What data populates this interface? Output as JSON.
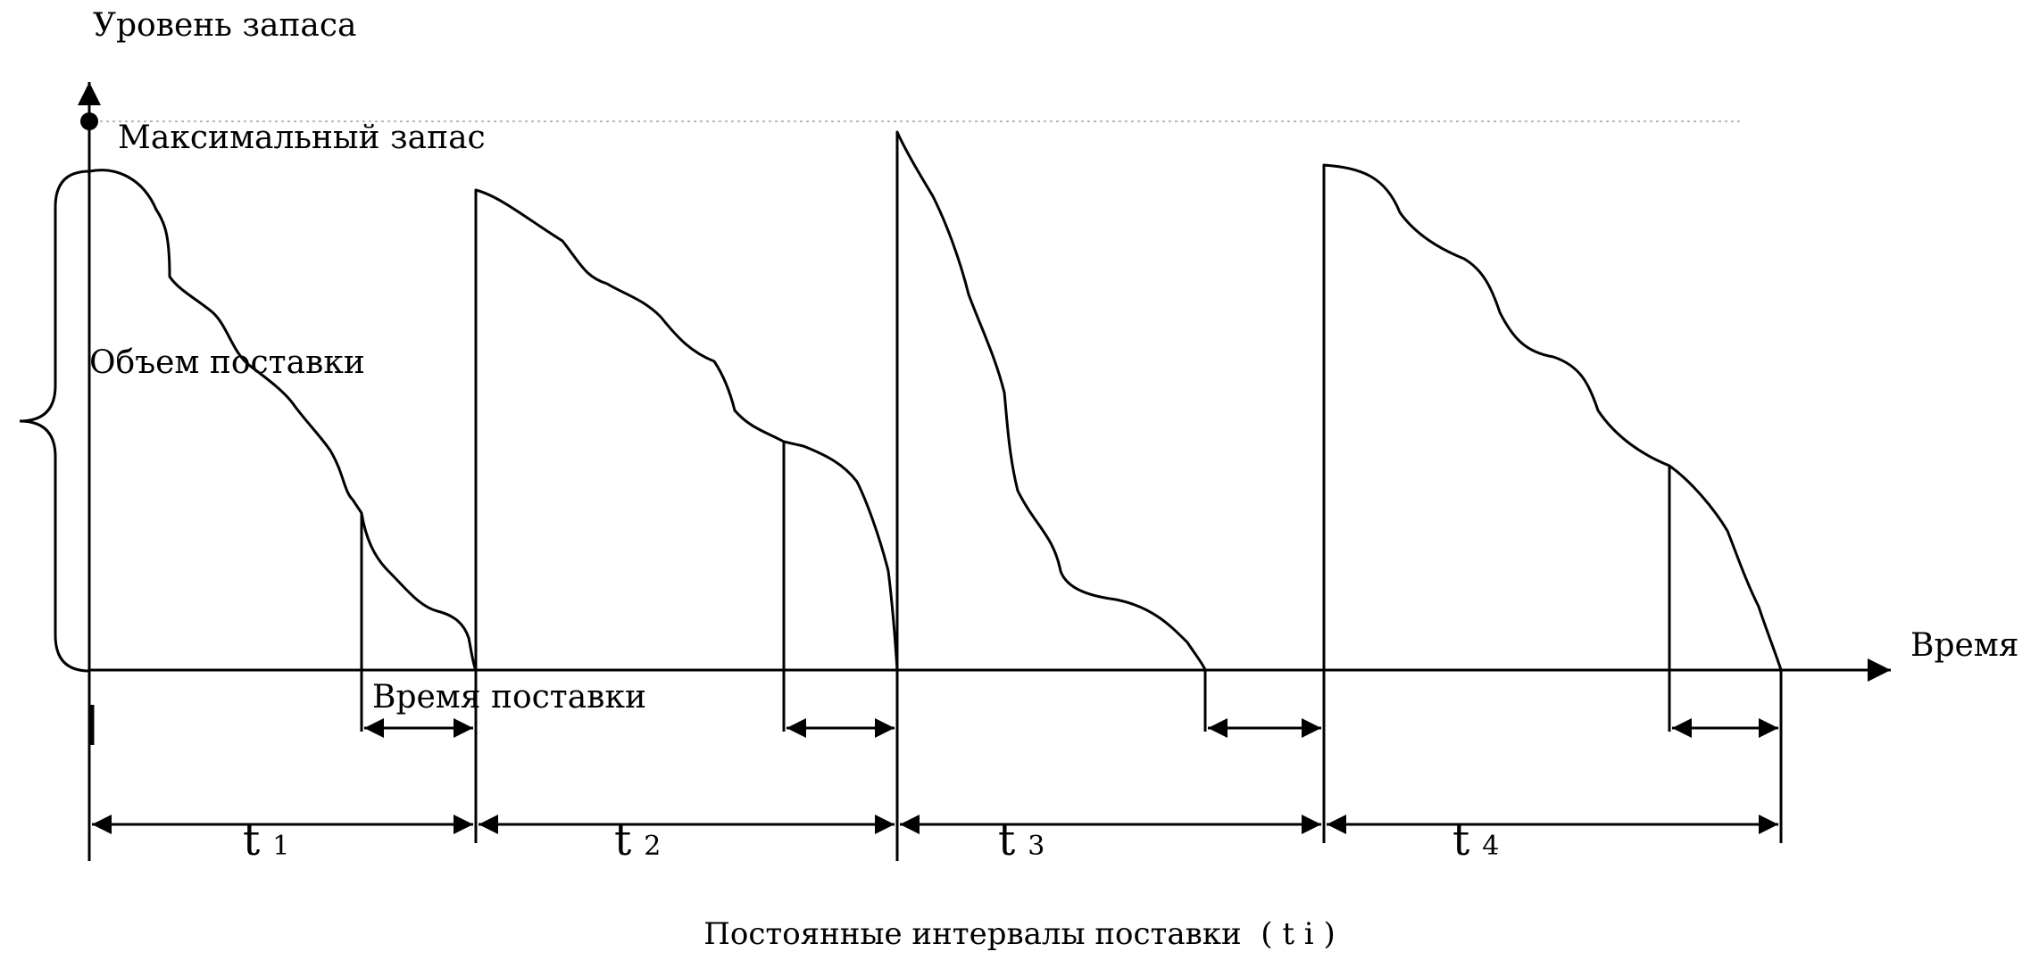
{
  "axis": {
    "y_label": "Уровень запаса",
    "x_label": "Время"
  },
  "labels": {
    "max_stock": "Максимальный запас",
    "order_volume": "Объем поставки",
    "lead_time": "Время поставки"
  },
  "intervals": [
    {
      "symbol": "t",
      "index": "1"
    },
    {
      "symbol": "t",
      "index": "2"
    },
    {
      "symbol": "t",
      "index": "3"
    },
    {
      "symbol": "t",
      "index": "4"
    }
  ],
  "caption": "Постоянные интервалы поставки  ( t i )"
}
